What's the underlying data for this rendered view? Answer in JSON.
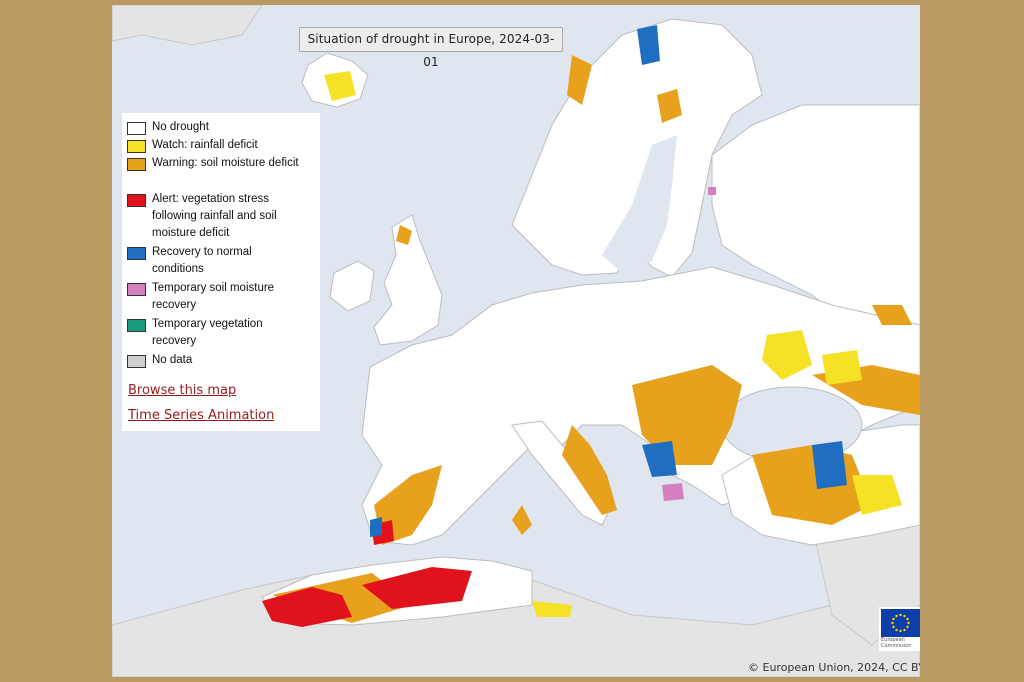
{
  "map": {
    "title": "Situation of drought in Europe, 2024-03-01",
    "credit": "© European Union, 2024, CC BY",
    "logo_text": "European Commission"
  },
  "colors": {
    "sea": "#dfe6f0",
    "land_outside": "#e4e4e4",
    "land": "#ffffff",
    "no_drought": "#ffffff",
    "watch": "#f5e227",
    "warning": "#e7a11d",
    "alert": "#e0121b",
    "recovery": "#1f6ec2",
    "temp_soil": "#d47fbf",
    "temp_veg": "#1a9b7c",
    "no_data": "#cfcfcf"
  },
  "legend": {
    "items": [
      {
        "label": "No drought",
        "color": "#ffffff"
      },
      {
        "label": "Watch: rainfall deficit",
        "color": "#f5e227"
      },
      {
        "label": "Warning: soil moisture deficit",
        "color": "#e7a11d"
      },
      {
        "label": "Alert: vegetation stress following rainfall and soil moisture deficit",
        "color": "#e0121b"
      },
      {
        "label": "Recovery to normal conditions",
        "color": "#1f6ec2"
      },
      {
        "label": "Temporary soil moisture recovery",
        "color": "#d47fbf"
      },
      {
        "label": "Temporary vegetation recovery",
        "color": "#1a9b7c"
      },
      {
        "label": "No data",
        "color": "#cfcfcf"
      }
    ],
    "links": [
      "Browse this map",
      "Time Series Animation"
    ]
  }
}
